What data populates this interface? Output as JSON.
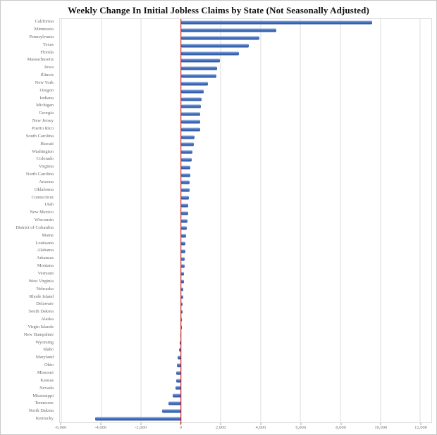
{
  "chart_data": {
    "type": "bar",
    "orientation": "horizontal",
    "title": "Weekly Change In Initial Jobless Claims by State (Not Seasonally Adjusted)",
    "xlabel": "",
    "ylabel": "",
    "grid": true,
    "legend": null,
    "categories": [
      "California",
      "Minnesota",
      "Pennsylvania",
      "Texas",
      "Florida",
      "Massachusetts",
      "Iowa",
      "Illinois",
      "New York",
      "Oregon",
      "Indiana",
      "Michigan",
      "Georgia",
      "New Jersey",
      "Puerto Rico",
      "South Carolina",
      "Hawaii",
      "Washington",
      "Colorado",
      "Virginia",
      "North Carolina",
      "Arizona",
      "Oklahoma",
      "Connecticut",
      "Utah",
      "New Mexico",
      "Wisconsin",
      "District of Columbia",
      "Maine",
      "Louisiana",
      "Alabama",
      "Arkansas",
      "Montana",
      "Vermont",
      "West Virginia",
      "Nebraska",
      "Rhode Island",
      "Delaware",
      "South Dakota",
      "Alaska",
      "Virgin Islands",
      "New Hampshire",
      "Wyoming",
      "Idaho",
      "Maryland",
      "Ohio",
      "Missouri",
      "Kansas",
      "Nevada",
      "Mississippi",
      "Tennessee",
      "North Dakota",
      "Kentucky"
    ],
    "values": [
      9580,
      4770,
      3930,
      3400,
      2900,
      1940,
      1810,
      1780,
      1360,
      1150,
      1030,
      1000,
      980,
      970,
      950,
      690,
      650,
      590,
      540,
      470,
      455,
      440,
      420,
      400,
      380,
      350,
      320,
      280,
      255,
      235,
      215,
      195,
      175,
      155,
      140,
      120,
      100,
      85,
      65,
      45,
      20,
      -30,
      -70,
      -110,
      -150,
      -200,
      -225,
      -245,
      -290,
      -400,
      -630,
      -950,
      -4290
    ],
    "x_axis": {
      "min": -6070,
      "max": 12560,
      "tick_step": 2000,
      "ticks": [
        -6000,
        -4000,
        -2000,
        0,
        2000,
        4000,
        6000,
        8000,
        10000,
        12000
      ],
      "tick_labels": [
        "-6,000",
        "-4,000",
        "-2,000",
        "0",
        "2,000",
        "4,000",
        "6,000",
        "8,000",
        "10,000",
        "12,000"
      ]
    },
    "colors": {
      "bar_top": "#93abd9",
      "bar_mid": "#4472c4",
      "bar_bottom": "#2e5395",
      "zero_line": "#c00000",
      "gridline": "#dcdcdc",
      "title_text": "#111111",
      "label_text": "#6b6b6b"
    }
  }
}
